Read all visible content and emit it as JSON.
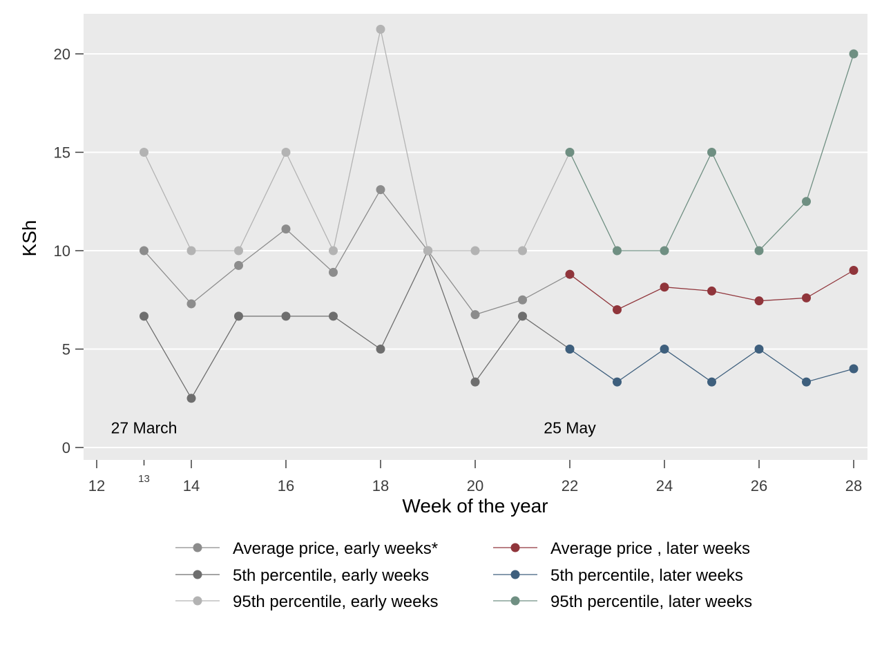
{
  "chart_data": {
    "type": "line",
    "xlabel": "Week of the year",
    "ylabel": "KSh",
    "xlim": [
      11.7,
      28.3
    ],
    "ylim": [
      -0.65,
      20.0
    ],
    "x_ticks": [
      12,
      14,
      16,
      18,
      20,
      22,
      24,
      26,
      28
    ],
    "x_minor_ticks": [
      13
    ],
    "y_ticks": [
      0,
      5,
      10,
      15,
      20
    ],
    "grid": true,
    "annotations": [
      {
        "text": "27 March",
        "x": 13,
        "y": 1.0
      },
      {
        "text": "25 May",
        "x": 22,
        "y": 1.0
      }
    ],
    "legend_position": "bottom",
    "series": [
      {
        "name": "Average price, early weeks*",
        "color": "#8c8c8c",
        "x": [
          13,
          14,
          15,
          16,
          17,
          18,
          19,
          20,
          21,
          22
        ],
        "y": [
          10,
          7.3,
          9.25,
          11.1,
          8.9,
          13.1,
          10,
          6.75,
          7.5,
          8.8
        ]
      },
      {
        "name": "5th percentile, early weeks",
        "color": "#6e6e6e",
        "x": [
          13,
          14,
          15,
          16,
          17,
          18,
          19,
          20,
          21,
          22
        ],
        "y": [
          6.67,
          2.5,
          6.67,
          6.67,
          6.67,
          5,
          10,
          3.33,
          6.67,
          5
        ]
      },
      {
        "name": "95th percentile, early weeks",
        "color": "#b3b3b3",
        "x": [
          13,
          14,
          15,
          16,
          17,
          18,
          19,
          20,
          21,
          22
        ],
        "y": [
          15,
          10,
          10,
          15,
          10,
          21.25,
          10,
          10,
          10,
          15
        ]
      },
      {
        "name": "Average price , later weeks",
        "color": "#90353b",
        "x": [
          22,
          23,
          24,
          25,
          26,
          27,
          28
        ],
        "y": [
          8.8,
          7,
          8.15,
          7.95,
          7.45,
          7.6,
          9
        ]
      },
      {
        "name": "5th percentile, later weeks",
        "color": "#3e5f7d",
        "x": [
          22,
          23,
          24,
          25,
          26,
          27,
          28
        ],
        "y": [
          5,
          3.33,
          5,
          3.33,
          5,
          3.33,
          4
        ]
      },
      {
        "name": "95th percentile, later weeks",
        "color": "#6f8f82",
        "x": [
          22,
          23,
          24,
          25,
          26,
          27,
          28
        ],
        "y": [
          15,
          10,
          10,
          15,
          10,
          12.5,
          20
        ]
      }
    ]
  }
}
